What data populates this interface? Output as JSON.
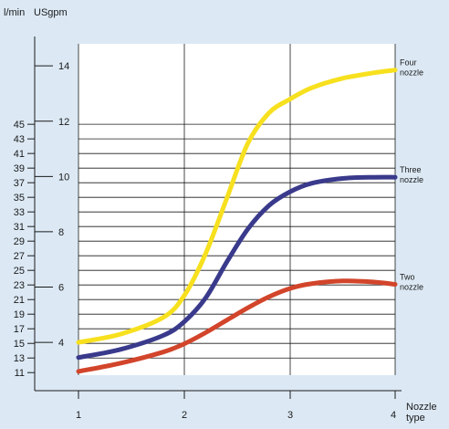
{
  "chart_data": {
    "type": "line",
    "xlabel": "Nozzle type",
    "xlabel_lines": [
      "Nozzle",
      "type"
    ],
    "ylabel_left": "l/min",
    "ylabel_right": "USgpm",
    "x_ticks": [
      1,
      2,
      3,
      4
    ],
    "xlim": [
      1,
      4
    ],
    "lmin_ticks": [
      11,
      13,
      15,
      17,
      19,
      21,
      23,
      25,
      27,
      29,
      31,
      33,
      35,
      37,
      39,
      41,
      43,
      45
    ],
    "usgpm_ticks": [
      4,
      6,
      8,
      10,
      12,
      14
    ],
    "usgpm_lim": [
      2.55,
      14.6
    ],
    "grid": true,
    "series": [
      {
        "name": "Four nozzle",
        "label_lines": [
          "Four",
          "nozzle"
        ],
        "color": "#f7e01e",
        "x": [
          1,
          1.4,
          1.8,
          2.0,
          2.2,
          2.4,
          2.6,
          2.8,
          3.0,
          3.2,
          3.5,
          3.8,
          4.0
        ],
        "y": [
          4.0,
          4.3,
          4.9,
          5.7,
          7.2,
          9.2,
          11.2,
          12.3,
          12.8,
          13.2,
          13.55,
          13.75,
          13.85
        ]
      },
      {
        "name": "Three nozzle",
        "label_lines": [
          "Three",
          "nozzle"
        ],
        "color": "#3a3a8c",
        "x": [
          1,
          1.4,
          1.8,
          2.0,
          2.2,
          2.4,
          2.6,
          2.8,
          3.0,
          3.2,
          3.5,
          3.8,
          4.0
        ],
        "y": [
          3.45,
          3.75,
          4.25,
          4.75,
          5.6,
          6.9,
          8.1,
          8.95,
          9.45,
          9.75,
          9.93,
          9.97,
          9.97
        ]
      },
      {
        "name": "Two nozzle",
        "label_lines": [
          "Two",
          "nozzle"
        ],
        "color": "#d2452b",
        "x": [
          1,
          1.4,
          1.8,
          2.0,
          2.2,
          2.4,
          2.6,
          2.8,
          3.0,
          3.2,
          3.5,
          3.8,
          4.0
        ],
        "y": [
          2.95,
          3.25,
          3.65,
          3.95,
          4.35,
          4.8,
          5.25,
          5.65,
          5.95,
          6.12,
          6.22,
          6.18,
          6.1
        ]
      }
    ]
  }
}
